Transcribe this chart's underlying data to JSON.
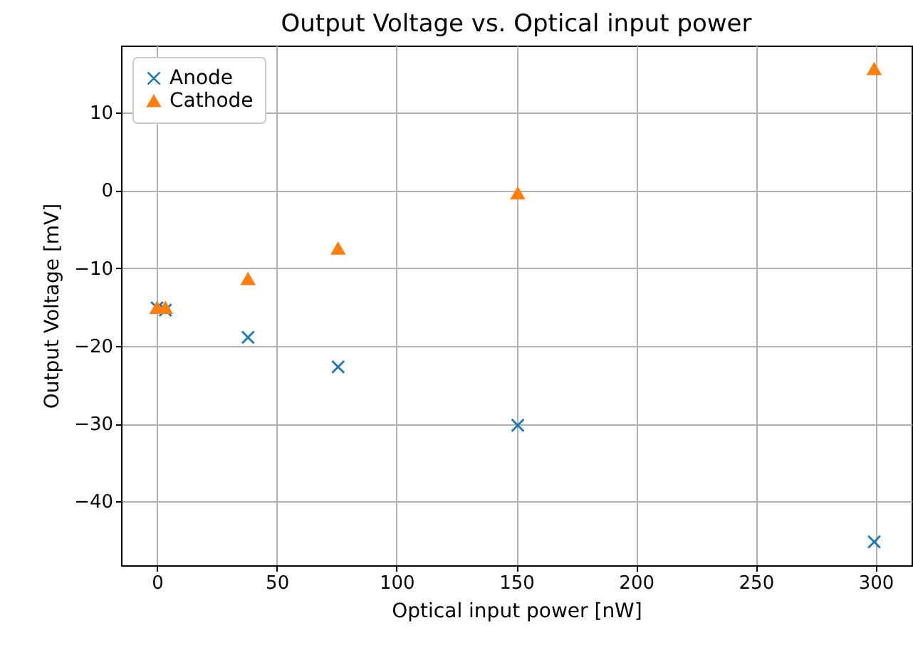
{
  "chart_data": {
    "type": "scatter",
    "title": "Output Voltage vs. Optical input power",
    "xlabel": "Optical input power [nW]",
    "ylabel": "Output Voltage [mV]",
    "x": [
      0,
      3.5,
      38,
      75.6,
      150.6,
      299.4
    ],
    "series": [
      {
        "name": "Anode",
        "color": "#1f77b4",
        "marker": "cross",
        "values": [
          -15.1,
          -15.4,
          -18.9,
          -22.7,
          -30.2,
          -45.2
        ]
      },
      {
        "name": "Cathode",
        "color": "#ff7f0e",
        "marker": "triangle",
        "values": [
          -15.1,
          -15.1,
          -11.4,
          -7.5,
          -0.4,
          15.6
        ]
      }
    ],
    "xlim": [
      -15,
      315
    ],
    "xticks": [
      0,
      50,
      100,
      150,
      200,
      250,
      300
    ],
    "ylim": [
      -48.2,
      18.6
    ],
    "yticks": [
      -40,
      -30,
      -20,
      -10,
      0,
      10
    ],
    "grid": true,
    "legend": "top left"
  }
}
